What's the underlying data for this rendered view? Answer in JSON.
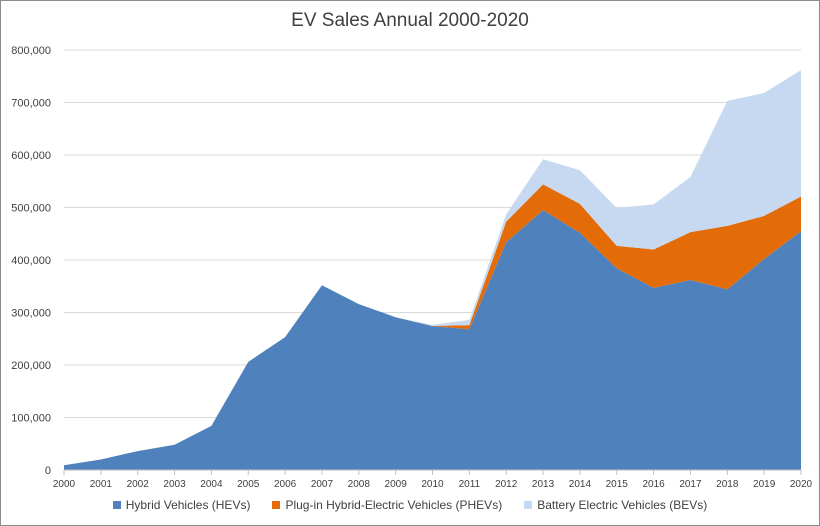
{
  "chart_data": {
    "type": "area",
    "stacked": true,
    "title": "EV Sales Annual 2000-2020",
    "xlabel": "",
    "ylabel": "",
    "ylim": [
      0,
      800000
    ],
    "yticks": [
      "0",
      "100,000",
      "200,000",
      "300,000",
      "400,000",
      "500,000",
      "600,000",
      "700,000",
      "800,000"
    ],
    "grid": true,
    "legend_position": "bottom",
    "categories": [
      "2000",
      "2001",
      "2002",
      "2003",
      "2004",
      "2005",
      "2006",
      "2007",
      "2008",
      "2009",
      "2010",
      "2011",
      "2012",
      "2013",
      "2014",
      "2015",
      "2016",
      "2017",
      "2018",
      "2019",
      "2020"
    ],
    "series": [
      {
        "name": "Hybrid Vehicles (HEVs)",
        "color": "#4f81bd",
        "values": [
          9000,
          20000,
          36000,
          48000,
          84000,
          206000,
          253000,
          352000,
          316000,
          291000,
          274000,
          268000,
          434000,
          495000,
          452000,
          384000,
          347000,
          362000,
          344000,
          402000,
          455000
        ]
      },
      {
        "name": "Plug-in Hybrid-Electric Vehicles (PHEVs)",
        "color": "#e36c09",
        "values": [
          0,
          0,
          0,
          0,
          0,
          0,
          0,
          0,
          0,
          0,
          400,
          8000,
          39000,
          49000,
          55000,
          43000,
          73000,
          91000,
          121000,
          82000,
          66000
        ]
      },
      {
        "name": "Battery Electric Vehicles (BEVs)",
        "color": "#c6d9f1",
        "values": [
          0,
          0,
          0,
          0,
          0,
          0,
          0,
          0,
          0,
          0,
          2000,
          10000,
          14000,
          48000,
          64000,
          72000,
          86000,
          105000,
          238000,
          234000,
          241000
        ]
      }
    ]
  }
}
